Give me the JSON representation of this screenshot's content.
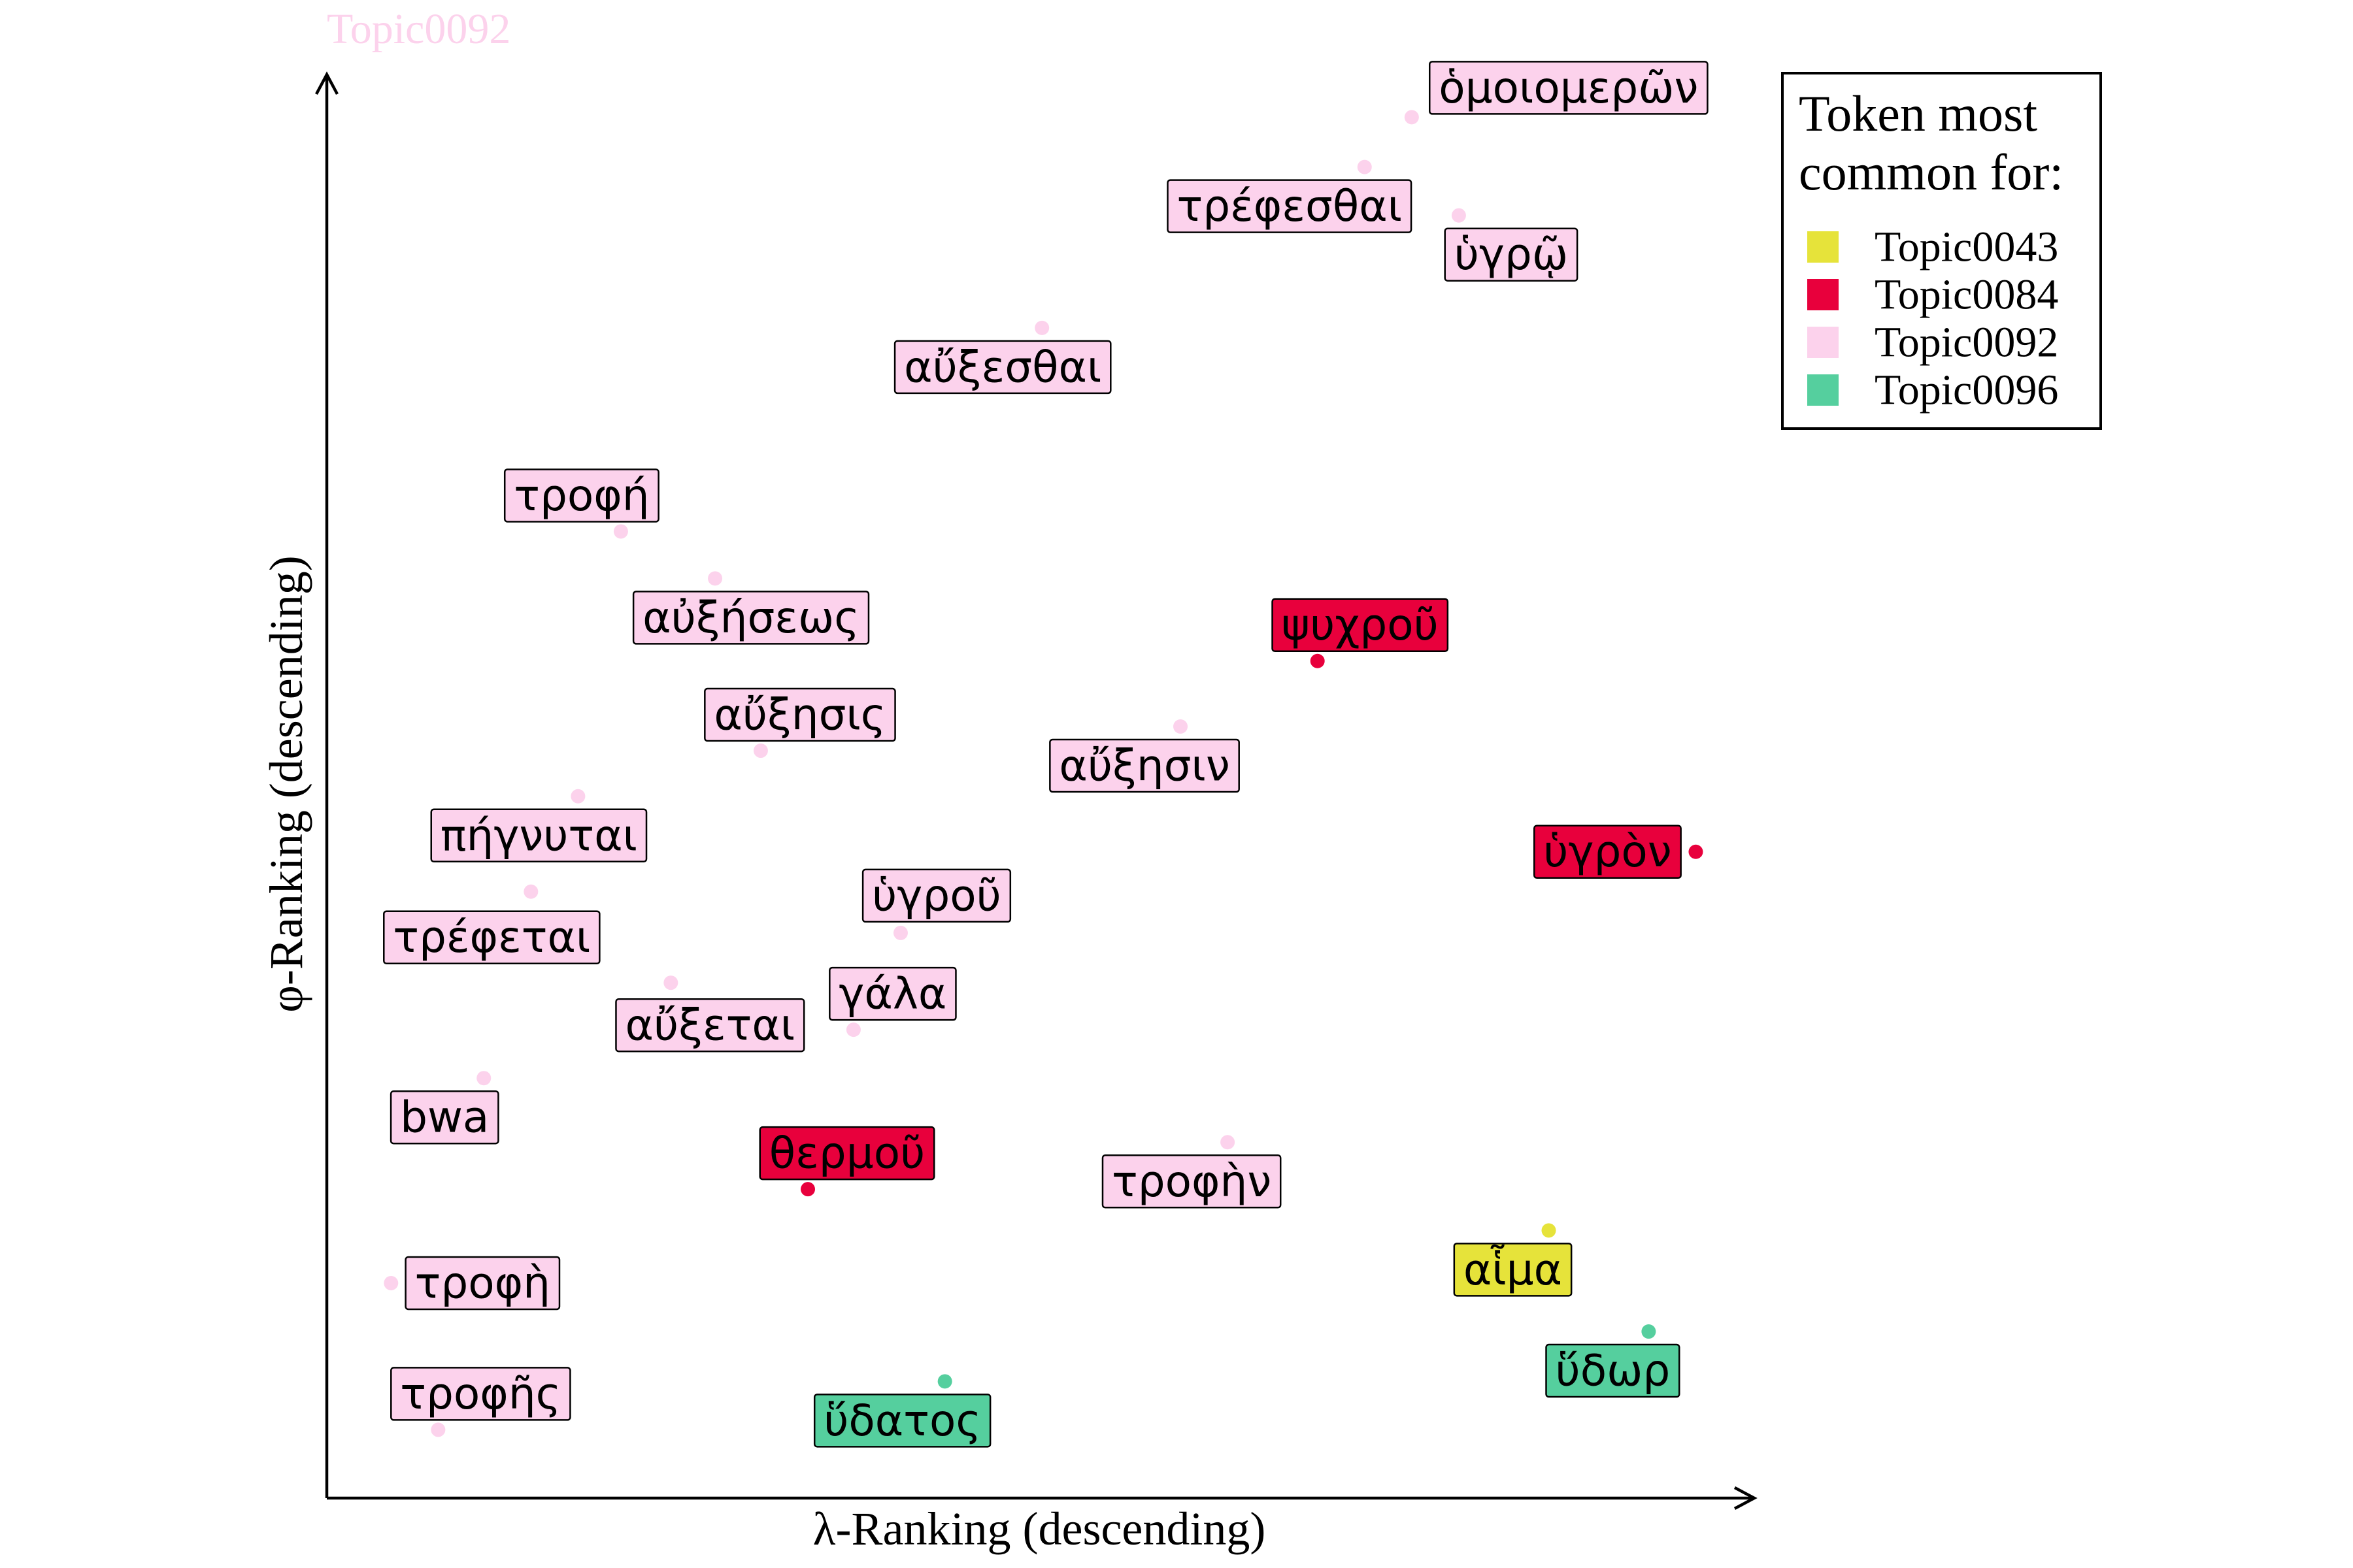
{
  "chart_data": {
    "type": "scatter",
    "title": "Topic0092",
    "xlabel": "λ-Ranking (descending)",
    "ylabel": "φ-Ranking (descending)",
    "xlim": [
      0,
      100
    ],
    "ylim": [
      0,
      100
    ],
    "grid": false,
    "legend_position": "top-right",
    "legend_title": [
      "Token most",
      "common for:"
    ],
    "topics": [
      {
        "name": "Topic0043",
        "color": "#e6e33a"
      },
      {
        "name": "Topic0084",
        "color": "#e8003c"
      },
      {
        "name": "Topic0092",
        "color": "#fcd2ec"
      },
      {
        "name": "Topic0096",
        "color": "#55cf9e"
      }
    ],
    "points": [
      {
        "label": "ὁμοιομερῶν",
        "topic": "Topic0092",
        "x": 76,
        "y": 97
      },
      {
        "label": "τρέφεσθαι",
        "topic": "Topic0092",
        "x": 72.7,
        "y": 93.5
      },
      {
        "label": "ὑγρῷ",
        "topic": "Topic0092",
        "x": 79.3,
        "y": 90.1
      },
      {
        "label": "αὔξεσθαι",
        "topic": "Topic0092",
        "x": 50.1,
        "y": 82.2
      },
      {
        "label": "τροφή",
        "topic": "Topic0092",
        "x": 20.6,
        "y": 67.9
      },
      {
        "label": "αὐξήσεως",
        "topic": "Topic0092",
        "x": 27.2,
        "y": 64.6
      },
      {
        "label": "ψυχροῦ",
        "topic": "Topic0084",
        "x": 69.4,
        "y": 58.8
      },
      {
        "label": "αὔξησις",
        "topic": "Topic0092",
        "x": 30.4,
        "y": 52.5
      },
      {
        "label": "αὔξησιν",
        "topic": "Topic0092",
        "x": 59.8,
        "y": 54.2
      },
      {
        "label": "πήγνυται",
        "topic": "Topic0092",
        "x": 17.6,
        "y": 49.3
      },
      {
        "label": "ὑγρὸν",
        "topic": "Topic0084",
        "x": 95.9,
        "y": 45.4
      },
      {
        "label": "τρέφεται",
        "topic": "Topic0092",
        "x": 14.3,
        "y": 42.6
      },
      {
        "label": "ὑγροῦ",
        "topic": "Topic0092",
        "x": 40.2,
        "y": 39.7
      },
      {
        "label": "αὔξεται",
        "topic": "Topic0092",
        "x": 24.1,
        "y": 36.2
      },
      {
        "label": "γάλα",
        "topic": "Topic0092",
        "x": 36.9,
        "y": 32.9
      },
      {
        "label": "bwa",
        "topic": "Topic0092",
        "x": 11,
        "y": 29.5
      },
      {
        "label": "θερμοῦ",
        "topic": "Topic0084",
        "x": 33.7,
        "y": 21.7
      },
      {
        "label": "τροφὴν",
        "topic": "Topic0092",
        "x": 63.1,
        "y": 25.0
      },
      {
        "label": "αἷμα",
        "topic": "Topic0043",
        "x": 85.6,
        "y": 18.8
      },
      {
        "label": "τροφὴ",
        "topic": "Topic0092",
        "x": 4.5,
        "y": 15.1
      },
      {
        "label": "ὕδωρ",
        "topic": "Topic0096",
        "x": 92.6,
        "y": 11.7
      },
      {
        "label": "ὕδατος",
        "topic": "Topic0096",
        "x": 43.3,
        "y": 8.2
      },
      {
        "label": "τροφῆς",
        "topic": "Topic0092",
        "x": 7.8,
        "y": 4.8
      }
    ]
  }
}
